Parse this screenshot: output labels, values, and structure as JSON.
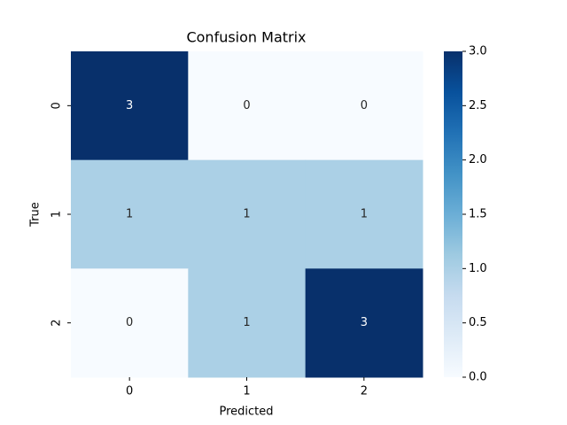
{
  "chart_data": {
    "type": "heatmap",
    "title": "Confusion Matrix",
    "x_label": "Predicted",
    "y_label": "True",
    "x_categories": [
      "0",
      "1",
      "2"
    ],
    "y_categories": [
      "0",
      "1",
      "2"
    ],
    "values": [
      [
        3,
        0,
        0
      ],
      [
        1,
        1,
        1
      ],
      [
        0,
        1,
        3
      ]
    ],
    "colormap": "Blues",
    "zlim": [
      0,
      3
    ],
    "zticks": [
      {
        "value": 0,
        "label": "0.0"
      },
      {
        "value": 0.5,
        "label": "0.5"
      },
      {
        "value": 1,
        "label": "1.0"
      },
      {
        "value": 1.5,
        "label": "1.5"
      },
      {
        "value": 2,
        "label": "2.0"
      },
      {
        "value": 2.5,
        "label": "2.5"
      },
      {
        "value": 3,
        "label": "3.0"
      }
    ]
  }
}
